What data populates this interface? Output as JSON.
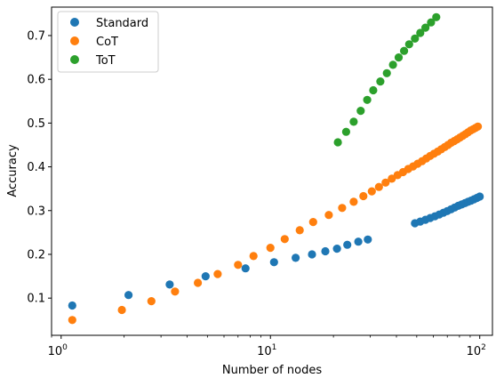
{
  "chart_data": {
    "type": "scatter",
    "xlabel": "Number of nodes",
    "ylabel": "Accuracy",
    "xscale": "log",
    "xlim": [
      0.9,
      115
    ],
    "ylim": [
      0.015,
      0.765
    ],
    "xticks": [
      {
        "value": 1,
        "base": "10",
        "exp": "0"
      },
      {
        "value": 10,
        "base": "10",
        "exp": "1"
      },
      {
        "value": 100,
        "base": "10",
        "exp": "2"
      }
    ],
    "yticks": [
      {
        "value": 0.1,
        "label": "0.1"
      },
      {
        "value": 0.2,
        "label": "0.2"
      },
      {
        "value": 0.3,
        "label": "0.3"
      },
      {
        "value": 0.4,
        "label": "0.4"
      },
      {
        "value": 0.5,
        "label": "0.5"
      },
      {
        "value": 0.6,
        "label": "0.6"
      },
      {
        "value": 0.7,
        "label": "0.7"
      }
    ],
    "legend_position": "top-left",
    "series": [
      {
        "name": "Standard",
        "color": "#1f77b4",
        "x": [
          1.13,
          2.1,
          3.3,
          4.9,
          7.6,
          10.4,
          13.2,
          15.8,
          18.3,
          20.8,
          23.3,
          26.3,
          29.2,
          49,
          52,
          55,
          58,
          61,
          64,
          67,
          70,
          73,
          76,
          79,
          82,
          85,
          88,
          91,
          94,
          97,
          100
        ],
        "y": [
          0.083,
          0.107,
          0.131,
          0.15,
          0.168,
          0.182,
          0.192,
          0.2,
          0.207,
          0.213,
          0.222,
          0.229,
          0.234,
          0.271,
          0.275,
          0.279,
          0.283,
          0.287,
          0.291,
          0.295,
          0.299,
          0.303,
          0.307,
          0.311,
          0.314,
          0.317,
          0.32,
          0.323,
          0.326,
          0.329,
          0.332
        ]
      },
      {
        "name": "CoT",
        "color": "#ff7f0e",
        "x": [
          1.13,
          1.95,
          2.7,
          3.5,
          4.5,
          5.6,
          7.0,
          8.3,
          10.0,
          11.7,
          13.8,
          16.0,
          19.0,
          22.0,
          25.0,
          27.8,
          30.5,
          33.0,
          35.5,
          38.0,
          40.5,
          43.0,
          45.5,
          48.0,
          50.5,
          53.0,
          55.5,
          58.0,
          60.5,
          63.0,
          65.5,
          68.0,
          70.5,
          73.0,
          75.5,
          78.0,
          80.5,
          83.0,
          85.5,
          88.0,
          90.5,
          93.0,
          95.5,
          98.0
        ],
        "y": [
          0.05,
          0.073,
          0.093,
          0.115,
          0.135,
          0.155,
          0.176,
          0.196,
          0.215,
          0.235,
          0.255,
          0.274,
          0.29,
          0.306,
          0.32,
          0.333,
          0.344,
          0.354,
          0.364,
          0.373,
          0.381,
          0.388,
          0.395,
          0.401,
          0.407,
          0.413,
          0.419,
          0.425,
          0.43,
          0.435,
          0.44,
          0.445,
          0.45,
          0.455,
          0.459,
          0.463,
          0.467,
          0.471,
          0.475,
          0.479,
          0.483,
          0.486,
          0.489,
          0.492
        ]
      },
      {
        "name": "ToT",
        "color": "#2ca02c",
        "x": [
          21,
          23,
          25,
          27,
          29,
          31,
          33.5,
          36,
          38.5,
          41,
          43.5,
          46,
          49,
          52,
          55,
          58.5,
          62
        ],
        "y": [
          0.456,
          0.48,
          0.503,
          0.528,
          0.553,
          0.575,
          0.595,
          0.614,
          0.633,
          0.65,
          0.665,
          0.68,
          0.693,
          0.706,
          0.718,
          0.73,
          0.742
        ]
      }
    ]
  }
}
